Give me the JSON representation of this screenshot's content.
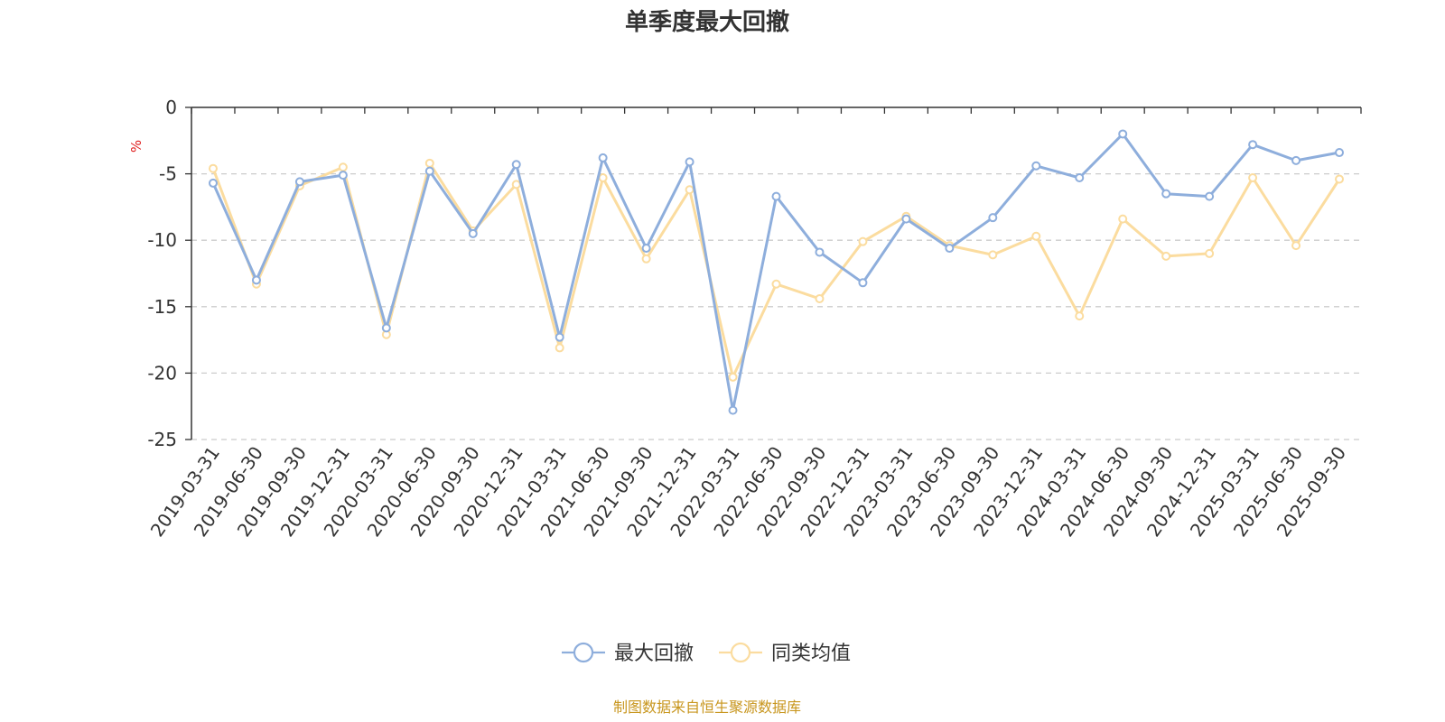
{
  "chart_data": {
    "type": "line",
    "title": "单季度最大回撤",
    "ylabel": "%",
    "ylim": [
      -25,
      0
    ],
    "yticks": [
      0,
      -5,
      -10,
      -15,
      -20,
      -25
    ],
    "grid": true,
    "legend_position": "bottom-center",
    "categories": [
      "2019-03-31",
      "2019-06-30",
      "2019-09-30",
      "2019-12-31",
      "2020-03-31",
      "2020-06-30",
      "2020-09-30",
      "2020-12-31",
      "2021-03-31",
      "2021-06-30",
      "2021-09-30",
      "2021-12-31",
      "2022-03-31",
      "2022-06-30",
      "2022-09-30",
      "2022-12-31",
      "2023-03-31",
      "2023-06-30",
      "2023-09-30",
      "2023-12-31",
      "2024-03-31",
      "2024-06-30",
      "2024-09-30",
      "2024-12-31",
      "2025-03-31",
      "2025-06-30",
      "2025-09-30"
    ],
    "series": [
      {
        "name": "最大回撤",
        "color": "#8eaedc",
        "values": [
          -5.7,
          -13.0,
          -5.6,
          -5.1,
          -16.6,
          -4.8,
          -9.5,
          -4.3,
          -17.3,
          -3.8,
          -10.6,
          -4.1,
          -22.8,
          -6.7,
          -10.9,
          -13.2,
          -8.4,
          -10.6,
          -8.3,
          -4.4,
          -5.3,
          -2.0,
          -6.5,
          -6.7,
          -2.8,
          -4.0,
          -3.4
        ]
      },
      {
        "name": "同类均值",
        "color": "#fbdc9f",
        "values": [
          -4.6,
          -13.3,
          -5.9,
          -4.5,
          -17.1,
          -4.2,
          -9.3,
          -5.8,
          -18.1,
          -5.3,
          -11.4,
          -6.2,
          -20.3,
          -13.3,
          -14.4,
          -10.1,
          -8.2,
          -10.4,
          -11.1,
          -9.7,
          -15.7,
          -8.4,
          -11.2,
          -11.0,
          -5.3,
          -10.4,
          -5.4
        ]
      }
    ]
  },
  "source_text": "制图数据来自恒生聚源数据库",
  "colors": {
    "unit_label": "#e02020",
    "source_text": "#c8961e",
    "axis": "#333333",
    "grid": "#cccccc"
  }
}
